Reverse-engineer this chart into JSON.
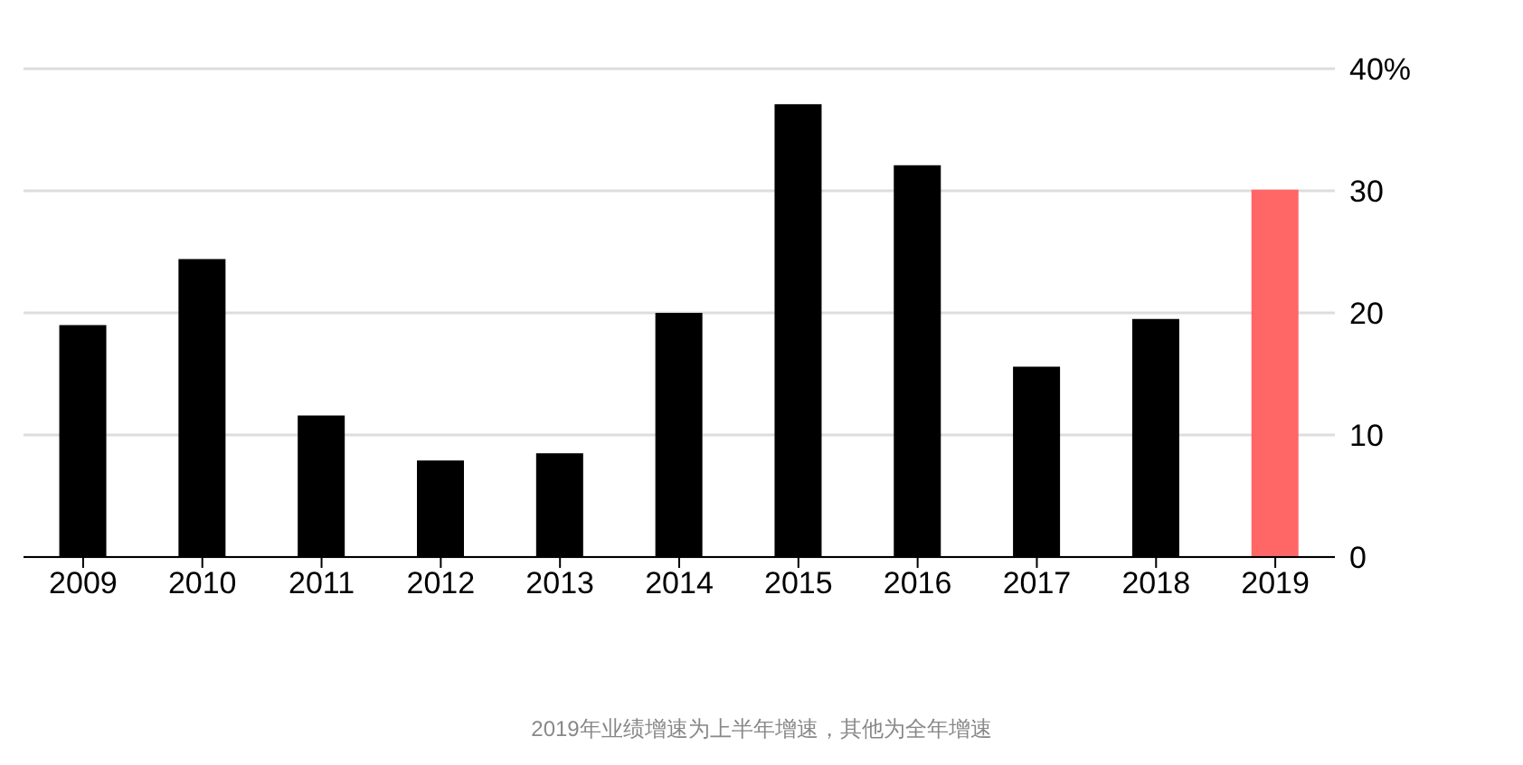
{
  "chart_data": {
    "type": "bar",
    "categories": [
      "2009",
      "2010",
      "2011",
      "2012",
      "2013",
      "2014",
      "2015",
      "2016",
      "2017",
      "2018",
      "2019"
    ],
    "values": [
      19,
      24.4,
      11.6,
      7.9,
      8.5,
      20,
      37.1,
      32.1,
      15.6,
      19.5,
      30.1
    ],
    "colors": [
      "#000000",
      "#000000",
      "#000000",
      "#000000",
      "#000000",
      "#000000",
      "#000000",
      "#000000",
      "#000000",
      "#000000",
      "#ff6666"
    ],
    "ylim": [
      0,
      40
    ],
    "yticks": [
      0,
      10,
      20,
      30,
      {
        "value": 40,
        "label": "40%"
      }
    ],
    "grid": "y",
    "annotations": [
      "2019年业绩增速为上半年增速，其他为全年增速"
    ]
  }
}
